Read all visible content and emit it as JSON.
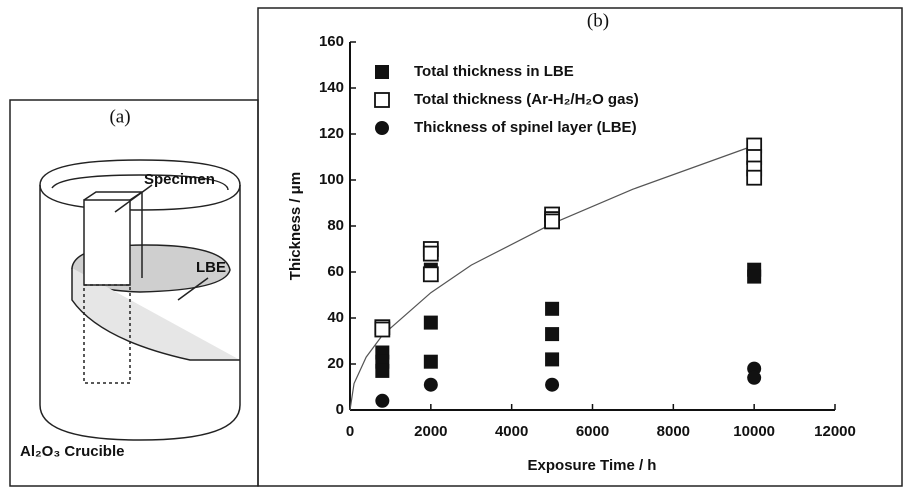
{
  "panel_a": {
    "label": "(a)",
    "specimen": "Specimen",
    "lbe": "LBE",
    "crucible": "Al₂O₃ Crucible"
  },
  "chart_data": {
    "type": "scatter",
    "title": "(b)",
    "x_label": "Exposure Time / h",
    "y_label": "Thickness / μm",
    "xlim": [
      0,
      12000
    ],
    "xticks": [
      0,
      2000,
      4000,
      6000,
      8000,
      10000,
      12000
    ],
    "ylim": [
      0,
      160
    ],
    "yticks": [
      0,
      20,
      40,
      60,
      80,
      100,
      120,
      140,
      160
    ],
    "grid": false,
    "legend": "upper-left",
    "series": [
      {
        "name": "Total thickness  in LBE",
        "color": "#111111",
        "marker": "square",
        "x": [
          800,
          800,
          800,
          2000,
          2000,
          2000,
          5000,
          5000,
          5000,
          10000,
          10000
        ],
        "values": [
          25,
          21,
          17,
          61,
          38,
          21,
          44,
          33,
          22,
          61,
          58
        ]
      },
      {
        "name": "Total thickness (Ar-H₂/H₂O gas)",
        "color": "#111111",
        "marker": "open-square",
        "x": [
          800,
          800,
          2000,
          2000,
          2000,
          5000,
          5000,
          5000,
          10000,
          10000,
          10000,
          10000
        ],
        "values": [
          36,
          35,
          70,
          68,
          59,
          85,
          83,
          82,
          115,
          110,
          105,
          101
        ]
      },
      {
        "name": "Thickness of spinel layer (LBE)",
        "color": "#111111",
        "marker": "circle",
        "x": [
          800,
          2000,
          5000,
          10000,
          10000
        ],
        "values": [
          4,
          11,
          11,
          18,
          14
        ]
      }
    ],
    "fit": {
      "color": "#555555",
      "x": [
        0,
        100,
        400,
        800,
        2000,
        3000,
        5000,
        7000,
        10000
      ],
      "values": [
        0,
        11.5,
        23,
        32.5,
        51,
        63,
        81,
        96,
        115
      ]
    }
  }
}
